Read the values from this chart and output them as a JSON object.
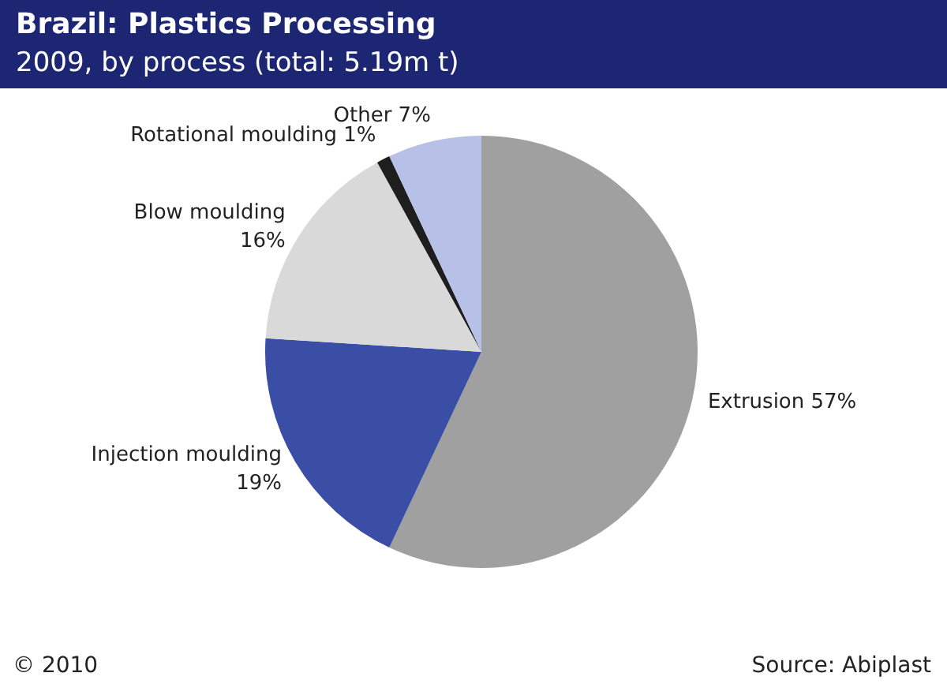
{
  "chart_data": {
    "type": "pie",
    "title": "Brazil: Plastics Processing",
    "subtitle": "2009, by process (total: 5.19m t)",
    "categories": [
      "Extrusion",
      "Injection moulding",
      "Blow moulding",
      "Rotational moulding",
      "Other"
    ],
    "values": [
      57,
      19,
      16,
      1,
      7
    ],
    "value_labels": [
      "57%",
      "19%",
      "16%",
      "1%",
      "7%"
    ],
    "colors": [
      "#a0a0a0",
      "#3b4ea6",
      "#d9d9d9",
      "#1e1e1e",
      "#b7c0e6"
    ],
    "legend": false,
    "annotations": [
      "© 2010",
      "Source: Abiplast"
    ]
  }
}
